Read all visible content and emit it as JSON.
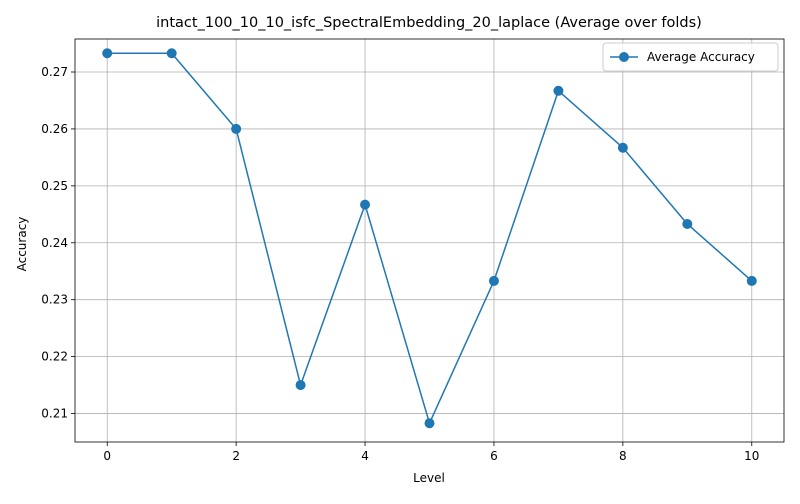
{
  "chart_data": {
    "type": "line",
    "title": "intact_100_10_10_isfc_SpectralEmbedding_20_laplace (Average over folds)",
    "xlabel": "Level",
    "ylabel": "Accuracy",
    "xlim": [
      -0.5,
      10.5
    ],
    "ylim": [
      0.205,
      0.2758
    ],
    "xticks": [
      0,
      2,
      4,
      6,
      8,
      10
    ],
    "yticks": [
      0.21,
      0.22,
      0.23,
      0.24,
      0.25,
      0.26,
      0.27
    ],
    "xtick_labels": [
      "0",
      "2",
      "4",
      "6",
      "8",
      "10"
    ],
    "ytick_labels": [
      "0.21",
      "0.22",
      "0.23",
      "0.24",
      "0.25",
      "0.26",
      "0.27"
    ],
    "grid": true,
    "legend_position": "top-right",
    "series": [
      {
        "name": "Average Accuracy",
        "color": "#1f77b4",
        "marker": "circle",
        "x": [
          0,
          1,
          2,
          3,
          4,
          5,
          6,
          7,
          8,
          9,
          10
        ],
        "y": [
          0.2733,
          0.2733,
          0.26,
          0.215,
          0.2467,
          0.2083,
          0.2333,
          0.2667,
          0.2567,
          0.2433,
          0.2333
        ]
      }
    ]
  }
}
